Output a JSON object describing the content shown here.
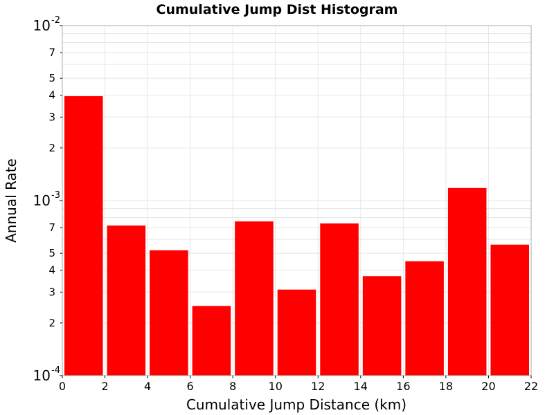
{
  "chart_data": {
    "type": "bar",
    "title": "Cumulative Jump Dist Histogram",
    "xlabel": "Cumulative Jump Distance (km)",
    "ylabel": "Annual Rate",
    "x_ticks": [
      "0",
      "2",
      "4",
      "6",
      "8",
      "10",
      "12",
      "14",
      "16",
      "18",
      "20",
      "22"
    ],
    "xlim": [
      0,
      22
    ],
    "y_scale": "log",
    "ylim": [
      0.0001,
      0.01
    ],
    "y_major_ticks": [
      {
        "value": 0.0001,
        "base": "10",
        "exp": "-4"
      },
      {
        "value": 0.001,
        "base": "10",
        "exp": "-3"
      },
      {
        "value": 0.01,
        "base": "10",
        "exp": "-2"
      }
    ],
    "y_minor_labels": [
      "2",
      "3",
      "4",
      "5",
      "7"
    ],
    "bar_color": "#ff0000",
    "grid": true,
    "bins": [
      {
        "x_start": 0,
        "x_end": 2,
        "value": 0.00395
      },
      {
        "x_start": 2,
        "x_end": 4,
        "value": 0.00072
      },
      {
        "x_start": 4,
        "x_end": 6,
        "value": 0.00052
      },
      {
        "x_start": 6,
        "x_end": 8,
        "value": 0.00025
      },
      {
        "x_start": 8,
        "x_end": 10,
        "value": 0.00076
      },
      {
        "x_start": 10,
        "x_end": 12,
        "value": 0.00031
      },
      {
        "x_start": 12,
        "x_end": 14,
        "value": 0.00074
      },
      {
        "x_start": 14,
        "x_end": 16,
        "value": 0.00037
      },
      {
        "x_start": 16,
        "x_end": 18,
        "value": 0.00045
      },
      {
        "x_start": 18,
        "x_end": 20,
        "value": 0.00118
      },
      {
        "x_start": 20,
        "x_end": 22,
        "value": 0.00056
      }
    ]
  }
}
